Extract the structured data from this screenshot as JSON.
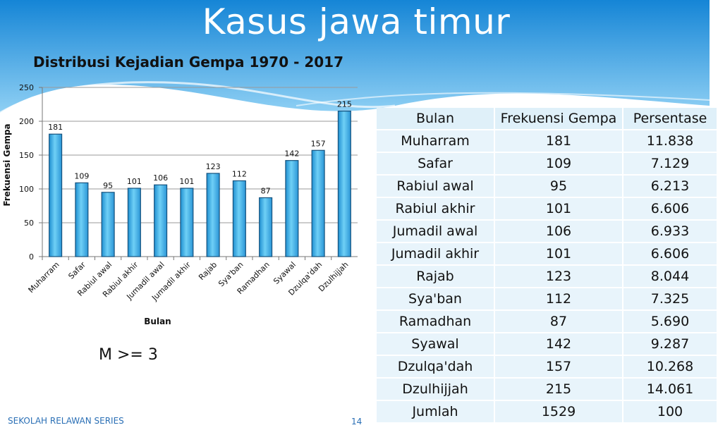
{
  "slide": {
    "title": "Kasus jawa timur",
    "footer": "SEKOLAH RELAWAN SERIES",
    "page_number": "14",
    "note": "M >= 3"
  },
  "colors": {
    "banner_top": "#1585d6",
    "banner_bottom": "#6cc0f0",
    "bar_fill": "#4fb6ea",
    "bar_edge": "#1d6fa8"
  },
  "chart_data": {
    "type": "bar",
    "title": "Distribusi Kejadian Gempa 1970 - 2017",
    "xlabel": "Bulan",
    "ylabel": "Frekuensi Gempa",
    "ylim": [
      0,
      250
    ],
    "yticks": [
      0,
      50,
      100,
      150,
      200,
      250
    ],
    "grid": true,
    "categories": [
      "Muharram",
      "Safar",
      "Rabiul awal",
      "Rabiul akhir",
      "Jumadil awal",
      "Jumadil akhir",
      "Rajab",
      "Sya'ban",
      "Ramadhan",
      "Syawal",
      "Dzulqa'dah",
      "Dzulhijjah"
    ],
    "values": [
      181,
      109,
      95,
      101,
      106,
      101,
      123,
      112,
      87,
      142,
      157,
      215
    ]
  },
  "table": {
    "headers": [
      "Bulan",
      "Frekuensi Gempa",
      "Persentase"
    ],
    "rows": [
      [
        "Muharram",
        "181",
        "11.838"
      ],
      [
        "Safar",
        "109",
        "7.129"
      ],
      [
        "Rabiul awal",
        "95",
        "6.213"
      ],
      [
        "Rabiul akhir",
        "101",
        "6.606"
      ],
      [
        "Jumadil awal",
        "106",
        "6.933"
      ],
      [
        "Jumadil akhir",
        "101",
        "6.606"
      ],
      [
        "Rajab",
        "123",
        "8.044"
      ],
      [
        "Sya'ban",
        "112",
        "7.325"
      ],
      [
        "Ramadhan",
        "87",
        "5.690"
      ],
      [
        "Syawal",
        "142",
        "9.287"
      ],
      [
        "Dzulqa'dah",
        "157",
        "10.268"
      ],
      [
        "Dzulhijjah",
        "215",
        "14.061"
      ],
      [
        "Jumlah",
        "1529",
        "100"
      ]
    ]
  }
}
